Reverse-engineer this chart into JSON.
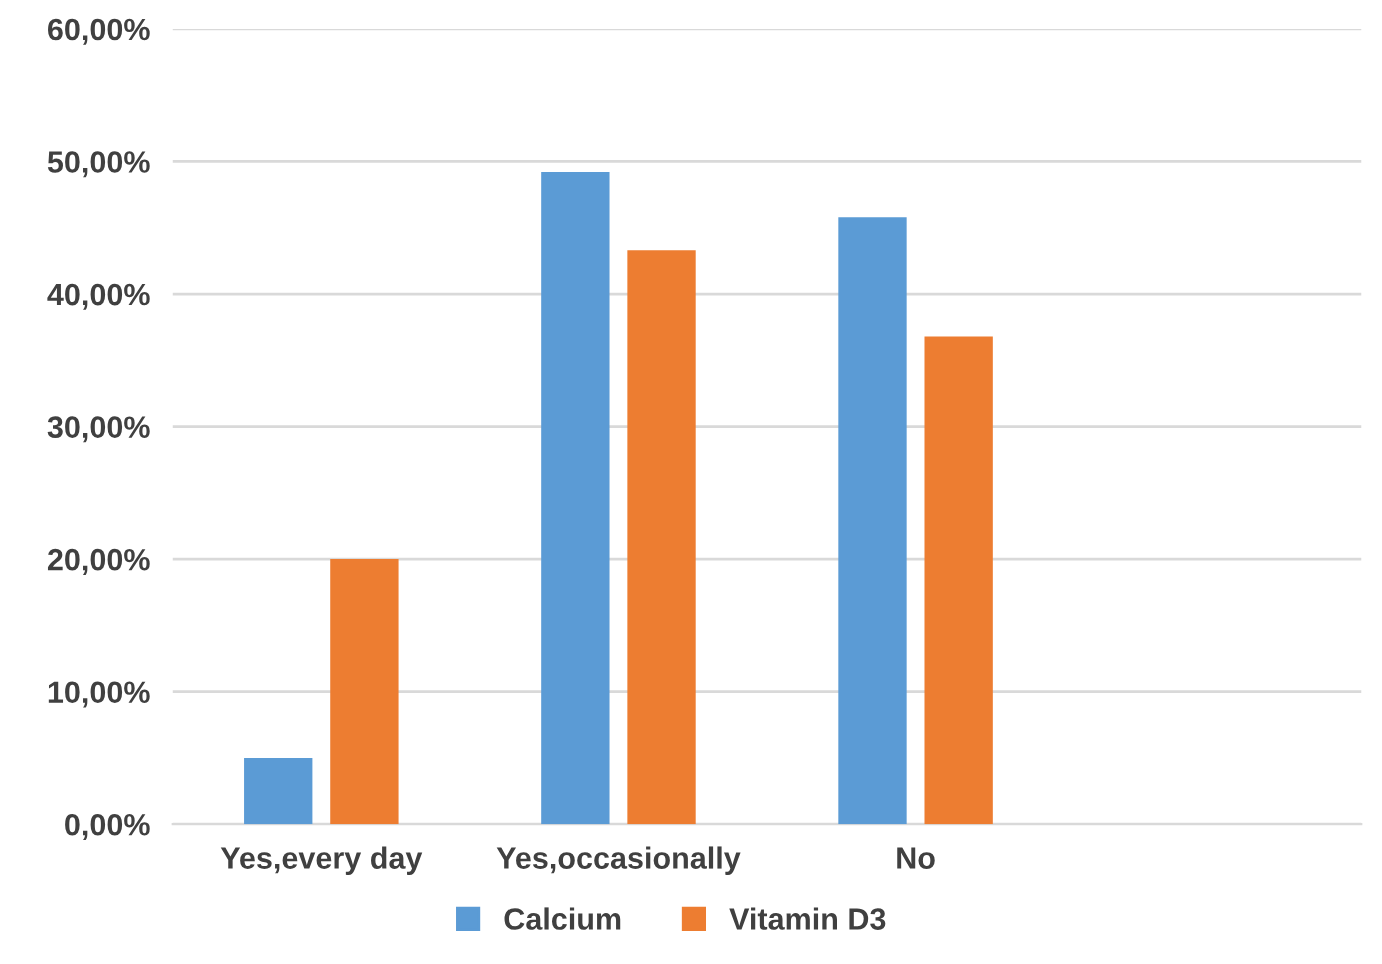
{
  "chart_data": {
    "type": "bar",
    "categories": [
      "Yes,every day",
      "Yes,occasionally",
      "No",
      null
    ],
    "series": [
      {
        "name": "Calcium",
        "color": "#5b9bd5",
        "values": [
          5.0,
          49.2,
          45.8,
          null
        ]
      },
      {
        "name": "Vitamin D3",
        "color": "#ed7d31",
        "values": [
          20.0,
          43.3,
          36.8,
          null
        ]
      }
    ],
    "ylim": [
      0,
      60
    ],
    "yticks": [
      {
        "value": 0,
        "label": "0,00%"
      },
      {
        "value": 10,
        "label": "10,00%"
      },
      {
        "value": 20,
        "label": "20,00%"
      },
      {
        "value": 30,
        "label": "30,00%"
      },
      {
        "value": 40,
        "label": "40,00%"
      },
      {
        "value": 50,
        "label": "50,00%"
      },
      {
        "value": 60,
        "label": "60,00%"
      }
    ],
    "grid": "y",
    "legend": "bottom"
  }
}
